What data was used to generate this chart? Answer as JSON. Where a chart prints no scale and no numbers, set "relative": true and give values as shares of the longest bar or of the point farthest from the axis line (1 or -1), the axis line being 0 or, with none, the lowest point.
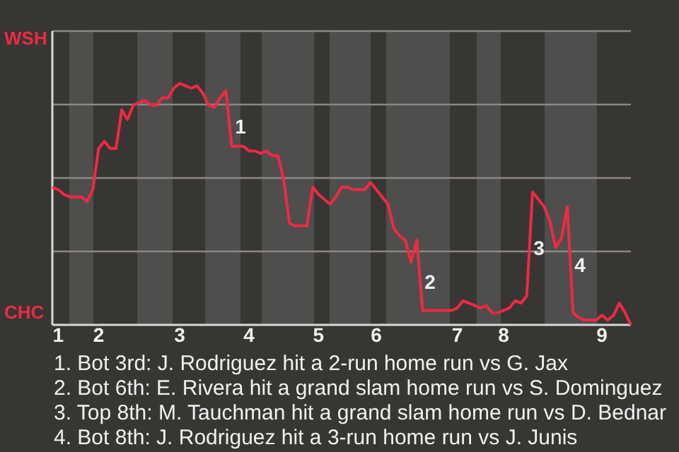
{
  "chart_data": {
    "type": "line",
    "relative": true,
    "tick_labels": "x",
    "grid": "y",
    "marker": "none",
    "line_style": "solid",
    "categories": [
      null,
      "1",
      null,
      null,
      null,
      null,
      null,
      null,
      "2",
      null,
      null,
      null,
      null,
      null,
      null,
      null,
      null,
      null,
      null,
      null,
      null,
      null,
      "3",
      null,
      null,
      null,
      null,
      null,
      null,
      null,
      null,
      null,
      null,
      null,
      "4",
      null,
      null,
      null,
      null,
      null,
      null,
      null,
      null,
      null,
      null,
      null,
      "5",
      null,
      null,
      null,
      null,
      null,
      null,
      null,
      null,
      null,
      "6",
      null,
      null,
      null,
      null,
      null,
      null,
      null,
      null,
      null,
      null,
      null,
      null,
      null,
      "7",
      null,
      null,
      null,
      null,
      null,
      null,
      null,
      "8",
      null,
      null,
      null,
      null,
      null,
      null,
      null,
      null,
      null,
      null,
      null,
      null,
      null,
      null,
      null,
      null,
      "9",
      null,
      null,
      null,
      null,
      null
    ],
    "series": [
      {
        "color": "#ee2a44",
        "values": [
          0.57,
          0.56,
          0.54,
          0.53,
          0.53,
          0.53,
          0.51,
          0.56,
          0.73,
          0.76,
          0.73,
          0.73,
          0.89,
          0.85,
          0.91,
          0.92,
          0.93,
          0.91,
          0.91,
          0.94,
          0.94,
          0.98,
          1,
          0.99,
          0.98,
          0.99,
          0.96,
          0.91,
          0.9,
          0.94,
          0.97,
          0.74,
          0.74,
          0.74,
          0.72,
          0.72,
          0.71,
          0.72,
          0.7,
          0.7,
          0.6,
          0.42,
          0.41,
          0.41,
          0.41,
          0.57,
          0.54,
          0.52,
          0.5,
          0.53,
          0.57,
          0.57,
          0.56,
          0.56,
          0.56,
          0.59,
          0.56,
          0.53,
          0.5,
          0.4,
          0.37,
          0.35,
          0.26,
          0.35,
          0.06,
          0.06,
          0.06,
          0.06,
          0.06,
          0.06,
          0.07,
          0.1,
          0.09,
          0.08,
          0.07,
          0.08,
          0.05,
          0.05,
          0.06,
          0.07,
          0.1,
          0.09,
          0.12,
          0.55,
          0.52,
          0.49,
          0.43,
          0.32,
          0.36,
          0.49,
          0.05,
          0.03,
          0.02,
          0.02,
          0.02,
          0.04,
          0.02,
          0.04,
          0.09,
          0.05,
          0
        ]
      }
    ],
    "annotations": [
      "WSH",
      "CHC",
      "1",
      "2",
      "3",
      "4",
      "1. Bot 3rd: J. Rodriguez hit a 2-run home run vs G. Jax",
      "2. Bot 6th: E. Rivera hit a grand slam home run vs S. Dominguez",
      "3. Top 8th: M. Tauchman hit a grand slam home run vs D. Bednar",
      "4. Bot 8th: J. Rodriguez hit a 3-run home run vs J. Junis"
    ]
  }
}
